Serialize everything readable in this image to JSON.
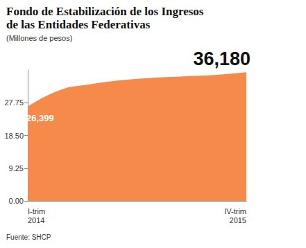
{
  "chart_data": {
    "type": "area",
    "title": "Fondo de Estabilización de los Ingresos\nde las Entidades Federativas",
    "subtitle": "(Millones de pesos)",
    "source": "Fuente: SHCP",
    "categories": [
      "I-trim\n2014",
      null,
      null,
      null,
      null,
      null,
      null,
      "IV-trim\n2015"
    ],
    "values": [
      26.399,
      31.0,
      32.8,
      33.9,
      34.6,
      35.0,
      35.4,
      36.18
    ],
    "value_labels": [
      "26,399",
      null,
      null,
      null,
      null,
      null,
      null,
      "36,180"
    ],
    "data_labels": true,
    "color": "#f58a4b",
    "ylim": [
      0,
      37
    ],
    "yticks": [
      {
        "value": 0,
        "label": "0.00"
      },
      {
        "value": 9.25,
        "label": "9.25"
      },
      {
        "value": 18.5,
        "label": "18.50"
      },
      {
        "value": 27.75,
        "label": "27.75"
      }
    ],
    "grid": false
  }
}
